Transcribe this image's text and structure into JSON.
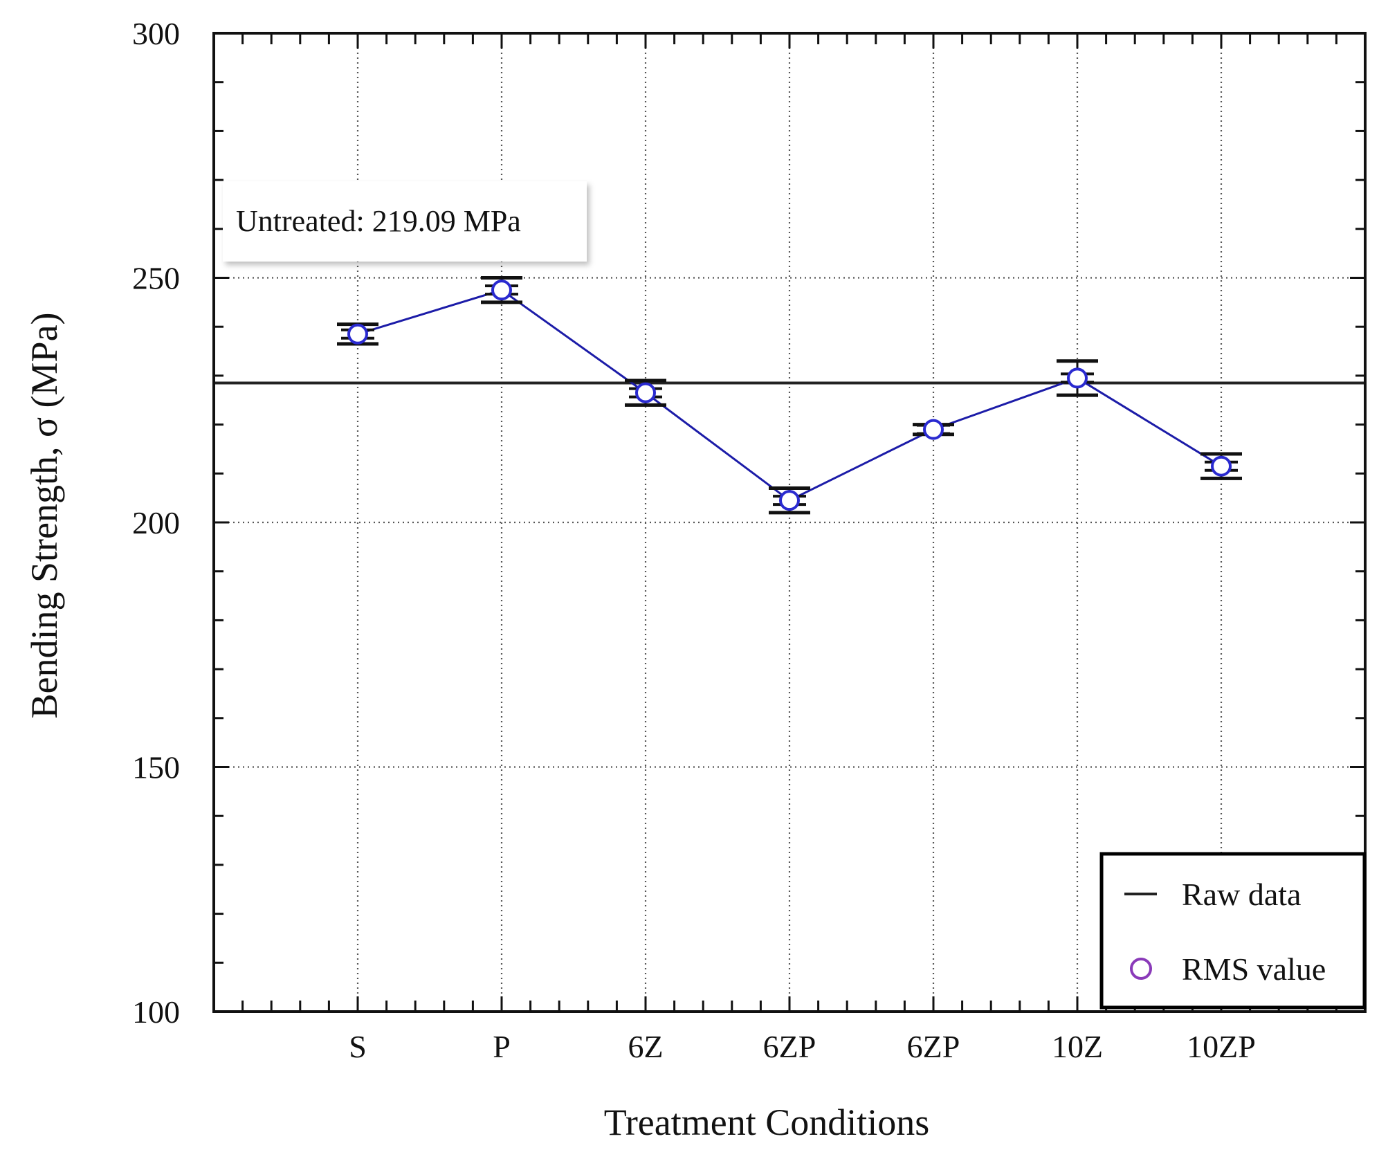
{
  "chart_data": {
    "type": "line",
    "title": "",
    "xlabel": "Treatment Conditions",
    "ylabel": "Bending Strength, σ  (MPa)",
    "ylim": [
      100,
      300
    ],
    "yticks": [
      100,
      150,
      200,
      250,
      300
    ],
    "ytick_labels": [
      "100",
      "150",
      "200",
      "250",
      "300"
    ],
    "grid": true,
    "categories": [
      "S",
      "P",
      "6Z",
      "6ZP",
      "6ZP",
      "10Z",
      "10ZP"
    ],
    "series": [
      {
        "name": "RMS value",
        "color": "#1c1ca8",
        "marker_color": "#2a2ad0",
        "values": [
          238.5,
          247.5,
          226.5,
          204.5,
          219.0,
          229.5,
          211.5
        ],
        "error": [
          2.0,
          2.5,
          2.5,
          2.5,
          1.0,
          3.5,
          2.5
        ]
      }
    ],
    "reference_line": {
      "name": "Raw data",
      "value": 228.5,
      "color": "#222222"
    },
    "annotation": {
      "text": "Untreated: 219.09 MPa"
    },
    "legend": {
      "position": "bottom-right",
      "entries": [
        {
          "label": "Raw data",
          "symbol": "line",
          "color": "#222222"
        },
        {
          "label": "RMS value",
          "symbol": "circle",
          "color": "#8a3ab9"
        }
      ]
    }
  }
}
